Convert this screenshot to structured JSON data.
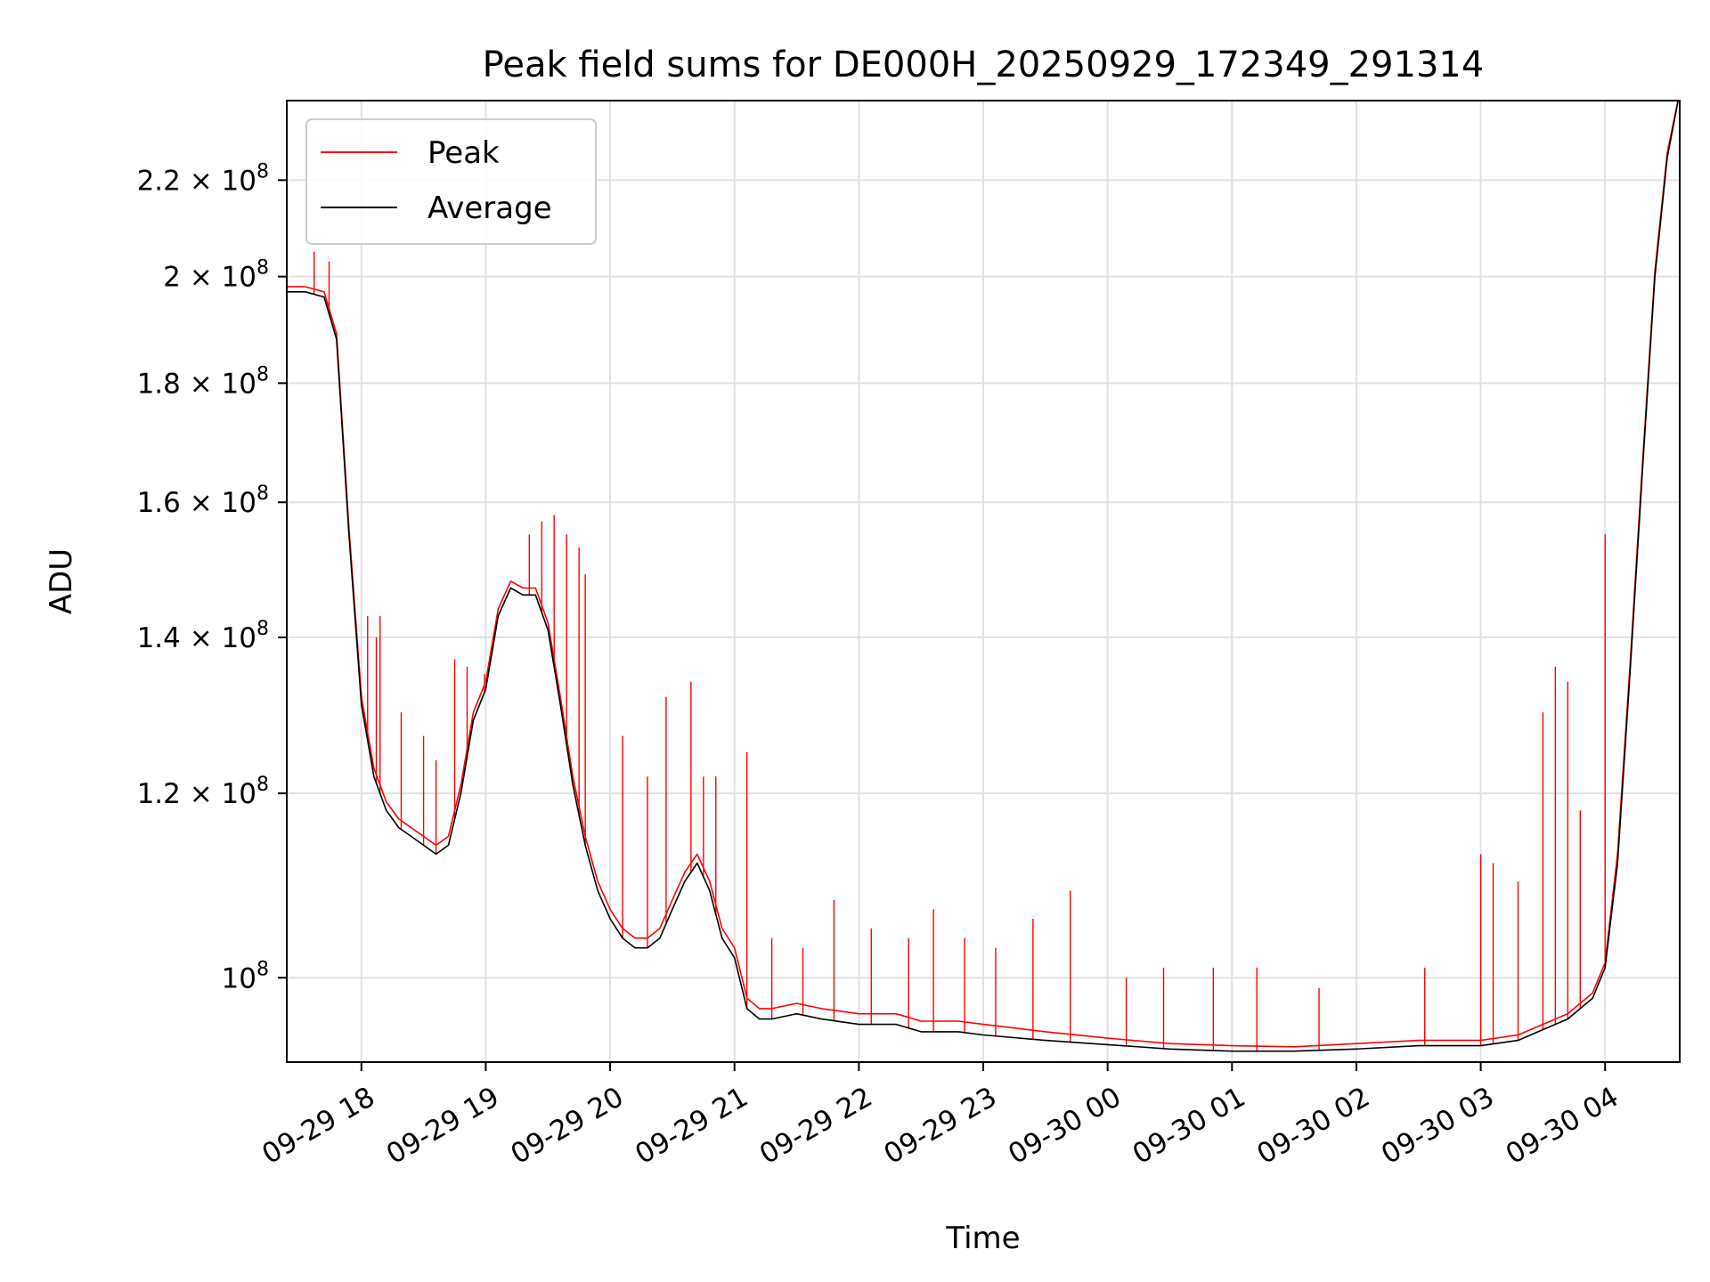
{
  "chart_data": {
    "type": "line",
    "title": "Peak field sums for DE000H_20250929_172349_291314",
    "xlabel": "Time",
    "ylabel": "ADU",
    "y_scale": "log",
    "grid": true,
    "legend_position": "top-left",
    "x_unit": "hours since 09-29 00:00",
    "xlim": [
      17.4,
      28.6
    ],
    "ylim": [
      92000000,
      238000000
    ],
    "x_ticks": [
      {
        "value": 18,
        "label": "09-29 18"
      },
      {
        "value": 19,
        "label": "09-29 19"
      },
      {
        "value": 20,
        "label": "09-29 20"
      },
      {
        "value": 21,
        "label": "09-29 21"
      },
      {
        "value": 22,
        "label": "09-29 22"
      },
      {
        "value": 23,
        "label": "09-29 23"
      },
      {
        "value": 24,
        "label": "09-30 00"
      },
      {
        "value": 25,
        "label": "09-30 01"
      },
      {
        "value": 26,
        "label": "09-30 02"
      },
      {
        "value": 27,
        "label": "09-30 03"
      },
      {
        "value": 28,
        "label": "09-30 04"
      }
    ],
    "y_ticks": [
      {
        "value": 100000000,
        "mantissa": "",
        "exp": "8"
      },
      {
        "value": 120000000,
        "mantissa": "1.2 × ",
        "exp": "8"
      },
      {
        "value": 140000000,
        "mantissa": "1.4 × ",
        "exp": "8"
      },
      {
        "value": 160000000,
        "mantissa": "1.6 × ",
        "exp": "8"
      },
      {
        "value": 180000000,
        "mantissa": "1.8 × ",
        "exp": "8"
      },
      {
        "value": 200000000,
        "mantissa": "2 × ",
        "exp": "8"
      },
      {
        "value": 220000000,
        "mantissa": "2.2 × ",
        "exp": "8"
      }
    ],
    "tick_base": "10",
    "series": [
      {
        "name": "Average",
        "color": "#000000",
        "x": [
          17.4,
          17.55,
          17.7,
          17.8,
          17.9,
          18.0,
          18.1,
          18.2,
          18.3,
          18.4,
          18.5,
          18.6,
          18.7,
          18.8,
          18.9,
          19.0,
          19.1,
          19.2,
          19.3,
          19.4,
          19.5,
          19.6,
          19.7,
          19.8,
          19.9,
          20.0,
          20.1,
          20.2,
          20.3,
          20.4,
          20.5,
          20.6,
          20.7,
          20.8,
          20.9,
          21.0,
          21.1,
          21.2,
          21.3,
          21.5,
          21.7,
          22.0,
          22.3,
          22.5,
          22.8,
          23.0,
          23.5,
          24.0,
          24.5,
          25.0,
          25.5,
          26.0,
          26.5,
          27.0,
          27.3,
          27.5,
          27.7,
          27.9,
          28.0,
          28.1,
          28.2,
          28.3,
          28.4,
          28.5,
          28.6
        ],
        "y": [
          197000000,
          197000000,
          196000000,
          188000000,
          155000000,
          131000000,
          122000000,
          118000000,
          116000000,
          115000000,
          114000000,
          113000000,
          114000000,
          120000000,
          129000000,
          133000000,
          143000000,
          147000000,
          146000000,
          146000000,
          141000000,
          131000000,
          121000000,
          114000000,
          109000000,
          106000000,
          104000000,
          103000000,
          103000000,
          104000000,
          107000000,
          110000000,
          112000000,
          109000000,
          104000000,
          102000000,
          97000000,
          96000000,
          96000000,
          96500000,
          96000000,
          95500000,
          95500000,
          94800000,
          94800000,
          94500000,
          94000000,
          93600000,
          93200000,
          93000000,
          93000000,
          93200000,
          93500000,
          93500000,
          94000000,
          95000000,
          96000000,
          98000000,
          101000000,
          112000000,
          135000000,
          165000000,
          200000000,
          225000000,
          240000000
        ]
      },
      {
        "name": "Peak",
        "color": "#ff0000",
        "x": [
          17.4,
          17.55,
          17.7,
          17.8,
          17.9,
          18.0,
          18.1,
          18.2,
          18.3,
          18.4,
          18.5,
          18.6,
          18.7,
          18.8,
          18.9,
          19.0,
          19.1,
          19.2,
          19.3,
          19.4,
          19.5,
          19.6,
          19.7,
          19.8,
          19.9,
          20.0,
          20.1,
          20.2,
          20.3,
          20.4,
          20.5,
          20.6,
          20.7,
          20.8,
          20.9,
          21.0,
          21.1,
          21.2,
          21.3,
          21.5,
          21.7,
          22.0,
          22.3,
          22.5,
          22.8,
          23.0,
          23.5,
          24.0,
          24.5,
          25.0,
          25.5,
          26.0,
          26.5,
          27.0,
          27.3,
          27.5,
          27.7,
          27.9,
          28.0,
          28.1,
          28.2,
          28.3,
          28.4,
          28.5,
          28.6
        ],
        "y": [
          198000000,
          198000000,
          197000000,
          189000000,
          156000000,
          132000000,
          123000000,
          119000000,
          117000000,
          116000000,
          115000000,
          114000000,
          115000000,
          121000000,
          130000000,
          134000000,
          144000000,
          148000000,
          147000000,
          147000000,
          142000000,
          132000000,
          122000000,
          115000000,
          110000000,
          107000000,
          105000000,
          104000000,
          104000000,
          105000000,
          108000000,
          111000000,
          113000000,
          110000000,
          105000000,
          103000000,
          98000000,
          97000000,
          97000000,
          97500000,
          97000000,
          96500000,
          96500000,
          95800000,
          95800000,
          95500000,
          94800000,
          94200000,
          93700000,
          93500000,
          93400000,
          93700000,
          94000000,
          94000000,
          94500000,
          95500000,
          96500000,
          98500000,
          101500000,
          113000000,
          136000000,
          166000000,
          201000000,
          226000000,
          240000000
        ]
      }
    ],
    "peak_spikes": {
      "x": [
        17.62,
        17.74,
        18.05,
        18.12,
        18.15,
        18.32,
        18.5,
        18.6,
        18.75,
        18.85,
        18.99,
        19.35,
        19.45,
        19.55,
        19.65,
        19.75,
        19.8,
        20.1,
        20.3,
        20.45,
        20.65,
        20.75,
        20.85,
        21.1,
        21.3,
        21.55,
        21.8,
        22.1,
        22.4,
        22.6,
        22.85,
        23.1,
        23.4,
        23.7,
        24.15,
        24.45,
        24.85,
        25.2,
        25.7,
        26.55,
        27.0,
        27.1,
        27.3,
        27.5,
        27.6,
        27.7,
        27.8,
        28.0
      ],
      "y": [
        205000000,
        203000000,
        143000000,
        140000000,
        143000000,
        130000000,
        127000000,
        124000000,
        137000000,
        136000000,
        135000000,
        155000000,
        157000000,
        158000000,
        155000000,
        153000000,
        149000000,
        127000000,
        122000000,
        132000000,
        134000000,
        122000000,
        122000000,
        125000000,
        104000000,
        103000000,
        108000000,
        105000000,
        104000000,
        107000000,
        104000000,
        103000000,
        106000000,
        109000000,
        100000000,
        101000000,
        101000000,
        101000000,
        99000000,
        101000000,
        113000000,
        112000000,
        110000000,
        130000000,
        136000000,
        134000000,
        118000000,
        155000000
      ]
    }
  },
  "legend": {
    "peak_label": "Peak",
    "average_label": "Average"
  }
}
